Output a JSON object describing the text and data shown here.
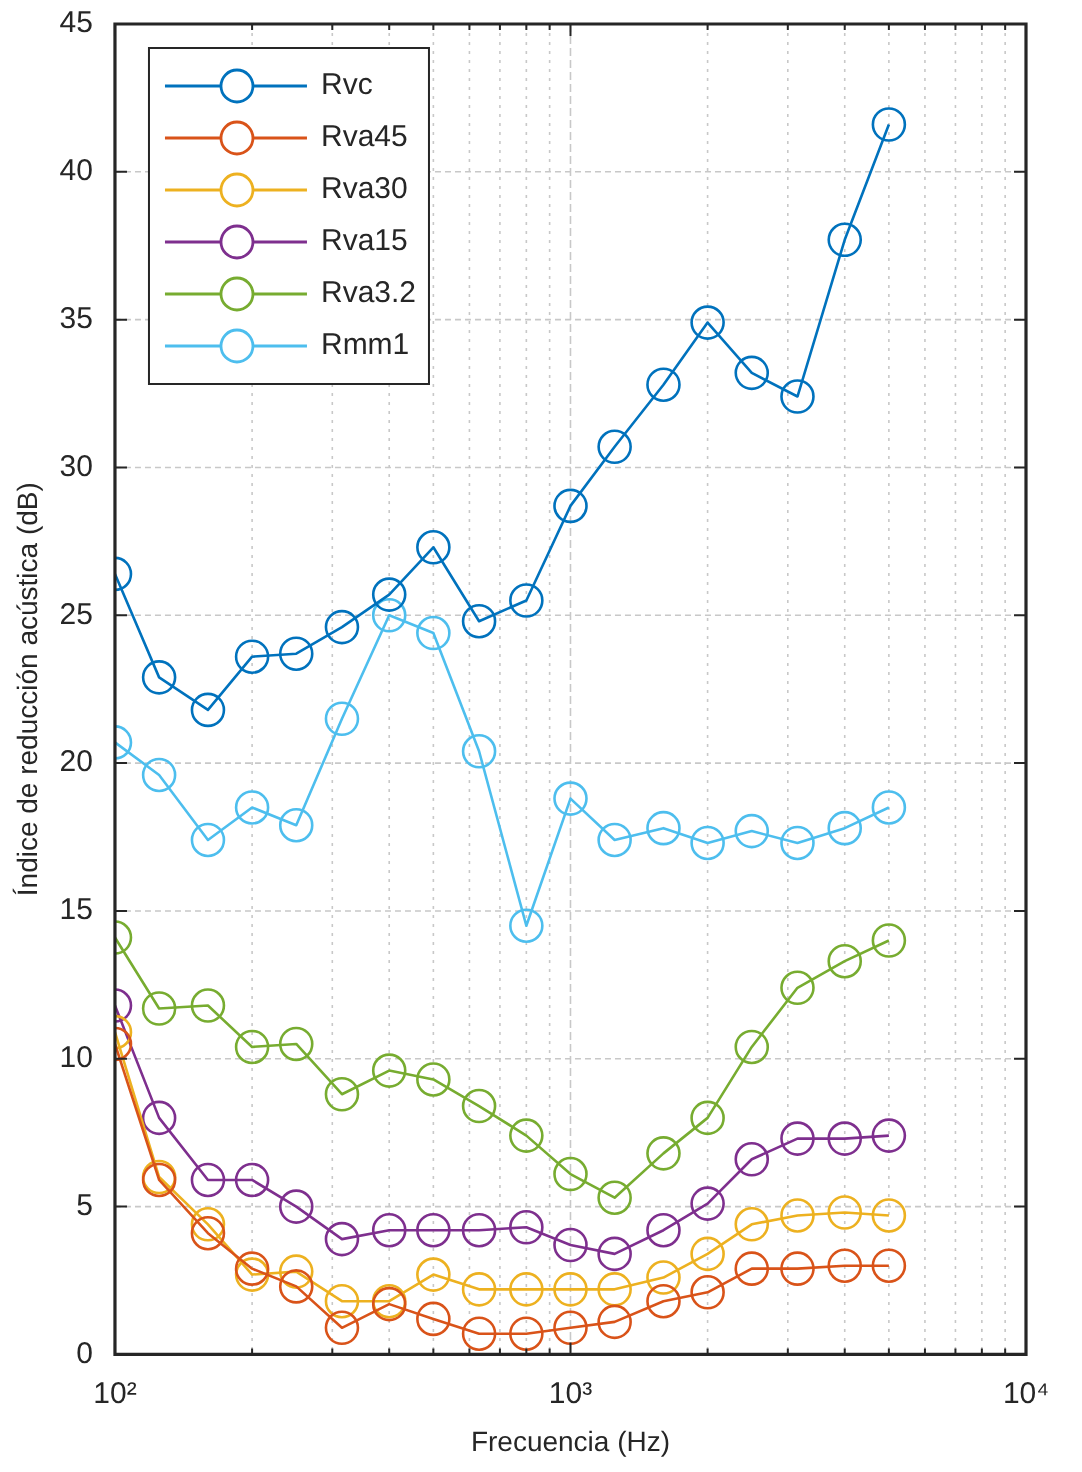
{
  "chart_data": {
    "type": "line",
    "xlabel": "Frecuencia (Hz)",
    "ylabel": "Índice de reducción acústica (dB)",
    "x": [
      100,
      125,
      160,
      200,
      250,
      315,
      400,
      500,
      630,
      800,
      1000,
      1250,
      1600,
      2000,
      2500,
      3150,
      4000,
      5000
    ],
    "series": [
      {
        "name": "Rvc",
        "color": "#0072bd",
        "values": [
          26.4,
          22.9,
          21.8,
          23.6,
          23.7,
          24.6,
          25.7,
          27.3,
          24.8,
          25.5,
          28.7,
          30.7,
          32.8,
          34.9,
          33.2,
          32.4,
          37.7,
          41.6
        ]
      },
      {
        "name": "Rva45",
        "color": "#d95319",
        "values": [
          10.5,
          5.9,
          4.1,
          2.9,
          2.3,
          0.9,
          1.7,
          1.2,
          0.7,
          0.7,
          0.9,
          1.1,
          1.8,
          2.1,
          2.9,
          2.9,
          3.0,
          3.0
        ]
      },
      {
        "name": "Rva30",
        "color": "#edb120",
        "values": [
          10.9,
          6.0,
          4.4,
          2.7,
          2.8,
          1.8,
          1.8,
          2.7,
          2.2,
          2.2,
          2.2,
          2.2,
          2.6,
          3.4,
          4.4,
          4.7,
          4.8,
          4.7
        ]
      },
      {
        "name": "Rva15",
        "color": "#7e2f8e",
        "values": [
          11.8,
          8.0,
          5.9,
          5.9,
          5.0,
          3.9,
          4.2,
          4.2,
          4.2,
          4.3,
          3.7,
          3.4,
          4.2,
          5.1,
          6.6,
          7.3,
          7.3,
          7.4
        ]
      },
      {
        "name": "Rva3.2",
        "color": "#77ac30",
        "values": [
          14.1,
          11.7,
          11.8,
          10.4,
          10.5,
          8.8,
          9.6,
          9.3,
          8.4,
          7.4,
          6.1,
          5.3,
          6.8,
          8.0,
          10.4,
          12.4,
          13.3,
          14.0
        ]
      },
      {
        "name": "Rmm1",
        "color": "#4dbeee",
        "values": [
          20.7,
          19.6,
          17.4,
          18.5,
          17.9,
          21.5,
          25.0,
          24.4,
          20.4,
          14.5,
          18.8,
          17.4,
          17.8,
          17.3,
          17.7,
          17.3,
          17.8,
          18.5
        ]
      }
    ],
    "log": "x",
    "xlim": [
      100,
      10000
    ],
    "xticks": [
      {
        "value": 100,
        "label": "10²"
      },
      {
        "value": 200,
        "label": null
      },
      {
        "value": 300,
        "label": null
      },
      {
        "value": 400,
        "label": null
      },
      {
        "value": 500,
        "label": null
      },
      {
        "value": 600,
        "label": null
      },
      {
        "value": 700,
        "label": null
      },
      {
        "value": 800,
        "label": null
      },
      {
        "value": 900,
        "label": null
      },
      {
        "value": 1000,
        "label": "10³"
      },
      {
        "value": 2000,
        "label": null
      },
      {
        "value": 3000,
        "label": null
      },
      {
        "value": 4000,
        "label": null
      },
      {
        "value": 5000,
        "label": null
      },
      {
        "value": 6000,
        "label": null
      },
      {
        "value": 7000,
        "label": null
      },
      {
        "value": 8000,
        "label": null
      },
      {
        "value": 9000,
        "label": null
      },
      {
        "value": 10000,
        "label": "10⁴"
      }
    ],
    "ylim": [
      0,
      45
    ],
    "yticks": [
      0,
      5,
      10,
      15,
      20,
      25,
      30,
      35,
      40,
      45
    ],
    "grid": true,
    "legend": "top left",
    "marker": "circle",
    "line_style": "solid"
  }
}
